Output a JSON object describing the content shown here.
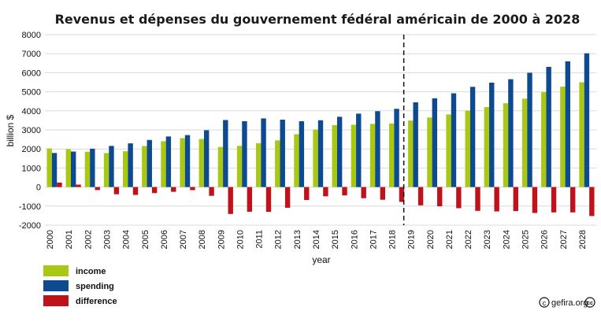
{
  "chart_data": {
    "type": "bar",
    "title": "Revenus et dépenses du gouvernement fédéral américain de 2000 à 2028",
    "xlabel": "year",
    "ylabel": "billion $",
    "ylim": [
      -2000,
      8000
    ],
    "yticks": [
      -2000,
      -1000,
      0,
      1000,
      2000,
      3000,
      4000,
      5000,
      6000,
      7000,
      8000
    ],
    "grid": true,
    "legend_position": "bottom-left",
    "forecast_divider_after": "2018",
    "categories": [
      "2000",
      "2001",
      "2002",
      "2003",
      "2004",
      "2005",
      "2006",
      "2007",
      "2008",
      "2009",
      "2010",
      "2011",
      "2012",
      "2013",
      "2014",
      "2015",
      "2016",
      "2017",
      "2018",
      "2019",
      "2020",
      "2021",
      "2022",
      "2023",
      "2024",
      "2025",
      "2026",
      "2027",
      "2028"
    ],
    "series": [
      {
        "name": "income",
        "color": "#a8c814",
        "values": [
          2025,
          1991,
          1853,
          1782,
          1880,
          2153,
          2406,
          2568,
          2524,
          2105,
          2162,
          2303,
          2450,
          2775,
          3021,
          3249,
          3268,
          3316,
          3330,
          3490,
          3650,
          3810,
          4010,
          4200,
          4400,
          4640,
          4980,
          5270,
          5500
        ]
      },
      {
        "name": "spending",
        "color": "#0d4a8f",
        "values": [
          1789,
          1863,
          2011,
          2160,
          2293,
          2472,
          2655,
          2728,
          2983,
          3518,
          3457,
          3603,
          3537,
          3455,
          3506,
          3688,
          3853,
          3982,
          4108,
          4448,
          4660,
          4920,
          5260,
          5480,
          5660,
          6000,
          6310,
          6600,
          7020
        ]
      },
      {
        "name": "difference",
        "color": "#c0121a",
        "values": [
          236,
          128,
          -158,
          -378,
          -413,
          -318,
          -248,
          -161,
          -459,
          -1413,
          -1294,
          -1300,
          -1087,
          -680,
          -485,
          -439,
          -585,
          -665,
          -779,
          -960,
          -1010,
          -1110,
          -1250,
          -1280,
          -1260,
          -1360,
          -1330,
          -1330,
          -1520
        ]
      }
    ]
  },
  "credit": "gefira.org"
}
